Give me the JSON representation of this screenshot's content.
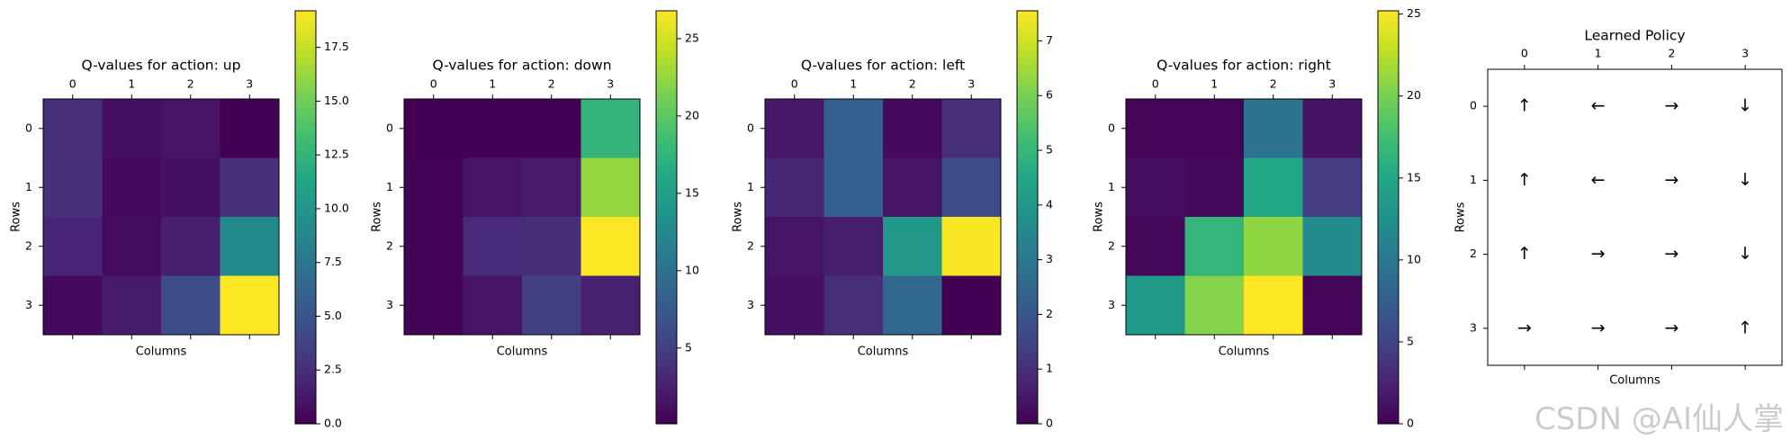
{
  "chart_data": [
    {
      "type": "heatmap",
      "title": "Q-values for action: up",
      "xlabel": "Columns",
      "ylabel": "Rows",
      "x_ticks": [
        "0",
        "1",
        "2",
        "3"
      ],
      "y_ticks": [
        "0",
        "1",
        "2",
        "3"
      ],
      "values": [
        [
          2.5,
          0.8,
          1.0,
          0.0
        ],
        [
          2.7,
          0.5,
          0.8,
          2.7
        ],
        [
          2.0,
          0.6,
          1.6,
          9.0
        ],
        [
          0.5,
          1.4,
          4.5,
          19.2
        ]
      ],
      "colorbar": {
        "min": 0,
        "max": 19.2,
        "ticks": [
          0.0,
          2.5,
          5.0,
          7.5,
          10.0,
          12.5,
          15.0,
          17.5
        ],
        "tick_labels": [
          "0.0",
          "2.5",
          "5.0",
          "7.5",
          "10.0",
          "12.5",
          "15.0",
          "17.5"
        ]
      },
      "colormap": "viridis"
    },
    {
      "type": "heatmap",
      "title": "Q-values for action: down",
      "xlabel": "Columns",
      "ylabel": "Rows",
      "x_ticks": [
        "0",
        "1",
        "2",
        "3"
      ],
      "y_ticks": [
        "0",
        "1",
        "2",
        "3"
      ],
      "values": [
        [
          0.1,
          0.1,
          0.1,
          17.5
        ],
        [
          0.3,
          1.5,
          2.0,
          22.5
        ],
        [
          0.3,
          3.3,
          3.5,
          26.8
        ],
        [
          0.3,
          1.5,
          5.0,
          2.5
        ]
      ],
      "colorbar": {
        "min": 0.1,
        "max": 26.8,
        "ticks": [
          5,
          10,
          15,
          20,
          25
        ],
        "tick_labels": [
          "5",
          "10",
          "15",
          "20",
          "25"
        ]
      },
      "colormap": "viridis"
    },
    {
      "type": "heatmap",
      "title": "Q-values for action: left",
      "xlabel": "Columns",
      "ylabel": "Rows",
      "x_ticks": [
        "0",
        "1",
        "2",
        "3"
      ],
      "y_ticks": [
        "0",
        "1",
        "2",
        "3"
      ],
      "values": [
        [
          0.5,
          2.3,
          0.2,
          1.0
        ],
        [
          0.8,
          2.3,
          0.4,
          1.7
        ],
        [
          0.4,
          0.6,
          4.0,
          7.5
        ],
        [
          0.3,
          1.0,
          2.5,
          0.0
        ]
      ],
      "colorbar": {
        "min": 0,
        "max": 7.55,
        "ticks": [
          0,
          1,
          2,
          3,
          4,
          5,
          6,
          7
        ],
        "tick_labels": [
          "0",
          "1",
          "2",
          "3",
          "4",
          "5",
          "6",
          "7"
        ]
      },
      "colormap": "viridis"
    },
    {
      "type": "heatmap",
      "title": "Q-values for action: right",
      "xlabel": "Columns",
      "ylabel": "Rows",
      "x_ticks": [
        "0",
        "1",
        "2",
        "3"
      ],
      "y_ticks": [
        "0",
        "1",
        "2",
        "3"
      ],
      "values": [
        [
          0.3,
          0.2,
          9.5,
          1.2
        ],
        [
          1.0,
          0.5,
          15.0,
          4.5
        ],
        [
          0.4,
          16.5,
          21.0,
          12.0
        ],
        [
          13.5,
          20.5,
          25.2,
          0.2
        ]
      ],
      "colorbar": {
        "min": 0,
        "max": 25.2,
        "ticks": [
          0,
          5,
          10,
          15,
          20,
          25
        ],
        "tick_labels": [
          "0",
          "5",
          "10",
          "15",
          "20",
          "25"
        ]
      },
      "colormap": "viridis"
    },
    {
      "type": "table",
      "title": "Learned Policy",
      "xlabel": "Columns",
      "ylabel": "Rows",
      "x_ticks": [
        "0",
        "1",
        "2",
        "3"
      ],
      "y_ticks": [
        "0",
        "1",
        "2",
        "3"
      ],
      "cells": [
        [
          "↑",
          "←",
          "→",
          "↓"
        ],
        [
          "↑",
          "←",
          "→",
          "↓"
        ],
        [
          "↑",
          "→",
          "→",
          "↓"
        ],
        [
          "→",
          "→",
          "→",
          "↑"
        ]
      ]
    }
  ],
  "watermark": "CSDN @AI仙人掌"
}
